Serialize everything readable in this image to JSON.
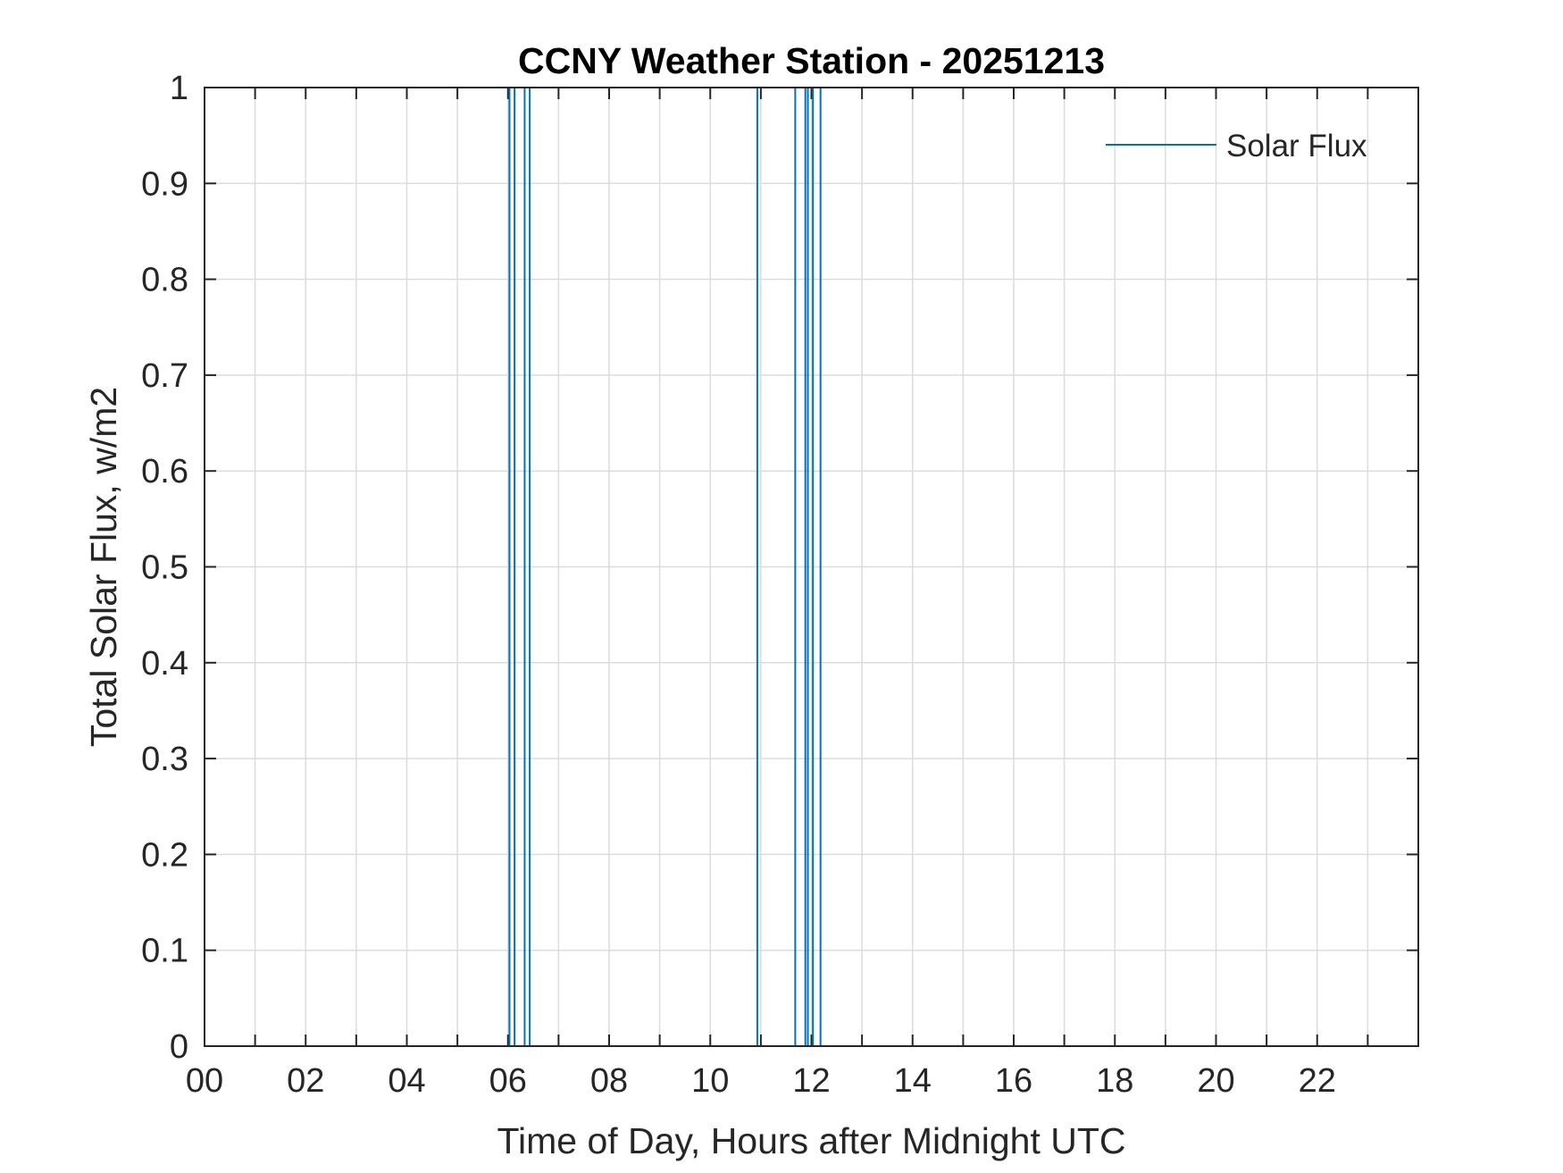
{
  "chart_data": {
    "type": "line",
    "title": "CCNY Weather Station - 20251213",
    "xlabel": "Time of Day, Hours after Midnight UTC",
    "ylabel": "Total Solar Flux, w/m2",
    "xlim": [
      0,
      24
    ],
    "ylim": [
      0,
      1
    ],
    "x_ticks": [
      0,
      2,
      4,
      6,
      8,
      10,
      12,
      14,
      16,
      18,
      20,
      22
    ],
    "x_tick_labels": [
      "00",
      "02",
      "04",
      "06",
      "08",
      "10",
      "12",
      "14",
      "16",
      "18",
      "20",
      "22"
    ],
    "y_ticks": [
      0,
      0.1,
      0.2,
      0.3,
      0.4,
      0.5,
      0.6,
      0.7,
      0.8,
      0.9,
      1
    ],
    "y_tick_labels": [
      "0",
      "0.1",
      "0.2",
      "0.3",
      "0.4",
      "0.5",
      "0.6",
      "0.7",
      "0.8",
      "0.9",
      "1"
    ],
    "grid": true,
    "legend_position": "top-right",
    "series": [
      {
        "name": "Solar Flux",
        "color": "#0072BD",
        "spikes_x": [
          6.03,
          6.13,
          6.33,
          6.43,
          10.93,
          11.68,
          11.88,
          11.93,
          12.03,
          12.18
        ]
      }
    ]
  }
}
